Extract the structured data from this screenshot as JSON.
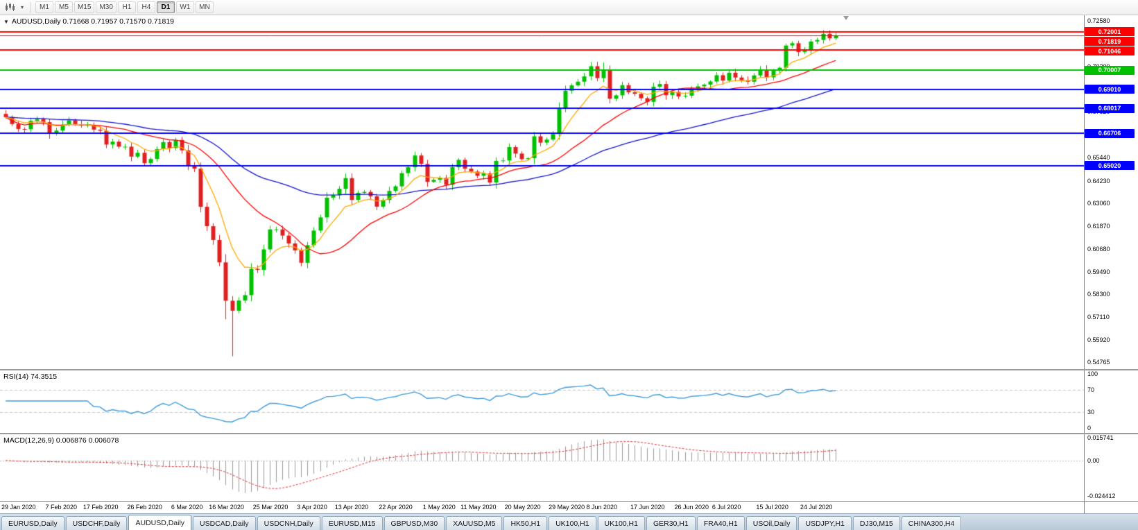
{
  "toolbar": {
    "timeframes": [
      "M1",
      "M5",
      "M15",
      "M30",
      "H1",
      "H4",
      "D1",
      "W1",
      "MN"
    ],
    "active_timeframe": "D1"
  },
  "bottom_tabs": {
    "items": [
      "EURUSD,Daily",
      "USDCHF,Daily",
      "AUDUSD,Daily",
      "USDCAD,Daily",
      "USDCNH,Daily",
      "EURUSD,M15",
      "GBPUSD,M30",
      "XAUUSD,M5",
      "HK50,H1",
      "UK100,H1",
      "UK100,H1",
      "GER30,H1",
      "FRA40,H1",
      "USOil,Daily",
      "USDJPY,H1",
      "DJ30,M15",
      "CHINA300,H4"
    ],
    "active_index": 2
  },
  "chart_data": {
    "type": "candlestick",
    "symbol": "AUDUSD",
    "timeframe": "Daily",
    "labels": {
      "collapse_arrow": "▼",
      "ohlc_header": "AUDUSD,Daily  0.71668 0.71957 0.71570 0.71819",
      "rsi": "RSI(14) 74.3515",
      "macd": "MACD(12,26,9) 0.006876 0.006078"
    },
    "price_axis": {
      "min": 0.54765,
      "max": 0.7258,
      "ticks": [
        0.7258,
        0.7139,
        0.702,
        0.6901,
        0.6782,
        0.6663,
        0.6544,
        0.6423,
        0.6306,
        0.6187,
        0.6068,
        0.5949,
        0.583,
        0.5711,
        0.5592,
        0.54765
      ]
    },
    "hlines": [
      {
        "price": 0.72001,
        "label": "0.72001",
        "color": "#ff0000"
      },
      {
        "price": 0.71046,
        "label": "0.71046",
        "color": "#ff0000"
      },
      {
        "price": 0.70007,
        "label": "0.70007",
        "color": "#00c000"
      },
      {
        "price": 0.6901,
        "label": "0.69010",
        "color": "#0000ff"
      },
      {
        "price": 0.68017,
        "label": "0.68017",
        "color": "#0000ff"
      },
      {
        "price": 0.66706,
        "label": "0.66706",
        "color": "#0000ff"
      },
      {
        "price": 0.6502,
        "label": "0.65020",
        "color": "#0000ff"
      }
    ],
    "current_price": {
      "value": 0.71819,
      "label": "0.71819",
      "color": "#ff0000"
    },
    "candles": {
      "first_open": 0.6772,
      "up_color": "#00c000",
      "down_color": "#e02020",
      "closes": [
        0.6755,
        0.6719,
        0.6693,
        0.6692,
        0.6736,
        0.6745,
        0.6729,
        0.6668,
        0.6685,
        0.6715,
        0.6738,
        0.6717,
        0.6712,
        0.6714,
        0.669,
        0.6684,
        0.6612,
        0.6627,
        0.6601,
        0.6601,
        0.6549,
        0.6569,
        0.6515,
        0.6537,
        0.6588,
        0.6625,
        0.6594,
        0.6636,
        0.6582,
        0.6504,
        0.6486,
        0.6287,
        0.6186,
        0.6114,
        0.5997,
        0.5797,
        0.5745,
        0.5798,
        0.5826,
        0.5963,
        0.5958,
        0.6065,
        0.6169,
        0.6169,
        0.6137,
        0.6096,
        0.606,
        0.5995,
        0.6087,
        0.6163,
        0.6232,
        0.6335,
        0.6348,
        0.6381,
        0.6437,
        0.6323,
        0.636,
        0.6365,
        0.6342,
        0.6288,
        0.6323,
        0.637,
        0.6394,
        0.6463,
        0.6494,
        0.6555,
        0.6511,
        0.6417,
        0.6428,
        0.6438,
        0.6402,
        0.6494,
        0.6532,
        0.6486,
        0.6471,
        0.6449,
        0.6461,
        0.6414,
        0.6527,
        0.6529,
        0.6599,
        0.6565,
        0.6536,
        0.6541,
        0.6655,
        0.6622,
        0.6638,
        0.6667,
        0.6799,
        0.6893,
        0.6921,
        0.694,
        0.6968,
        0.7021,
        0.6959,
        0.7,
        0.6851,
        0.6869,
        0.6922,
        0.6885,
        0.6877,
        0.6854,
        0.6835,
        0.6914,
        0.6928,
        0.687,
        0.6887,
        0.6863,
        0.6867,
        0.6905,
        0.6916,
        0.6925,
        0.6941,
        0.6974,
        0.6946,
        0.6987,
        0.6962,
        0.6948,
        0.694,
        0.6973,
        0.7003,
        0.6963,
        0.6997,
        0.7013,
        0.7129,
        0.7141,
        0.7095,
        0.7102,
        0.715,
        0.7158,
        0.719,
        0.71668,
        0.71819
      ],
      "high_overrides": {
        "95": 0.7041,
        "124": 0.7138,
        "132": 0.71957
      },
      "low_overrides": {
        "35": 0.57,
        "36": 0.5507,
        "132": 0.7157
      }
    },
    "moving_averages": [
      {
        "method": "ema",
        "period": 55,
        "color": "#1414cc"
      },
      {
        "method": "sma",
        "period": 20,
        "color": "#ff0000"
      },
      {
        "method": "ema",
        "period": 8,
        "color": "#ffaa00"
      }
    ],
    "x_ticks": [
      {
        "label": "29 Jan 2020",
        "index": 0
      },
      {
        "label": "7 Feb 2020",
        "index": 7
      },
      {
        "label": "17 Feb 2020",
        "index": 13
      },
      {
        "label": "26 Feb 2020",
        "index": 20
      },
      {
        "label": "6 Mar 2020",
        "index": 27
      },
      {
        "label": "16 Mar 2020",
        "index": 33
      },
      {
        "label": "25 Mar 2020",
        "index": 40
      },
      {
        "label": "3 Apr 2020",
        "index": 47
      },
      {
        "label": "13 Apr 2020",
        "index": 53
      },
      {
        "label": "22 Apr 2020",
        "index": 60
      },
      {
        "label": "1 May 2020",
        "index": 67
      },
      {
        "label": "11 May 2020",
        "index": 73
      },
      {
        "label": "20 May 2020",
        "index": 80
      },
      {
        "label": "29 May 2020",
        "index": 87
      },
      {
        "label": "8 Jun 2020",
        "index": 93
      },
      {
        "label": "17 Jun 2020",
        "index": 100
      },
      {
        "label": "26 Jun 2020",
        "index": 107
      },
      {
        "label": "6 Jul 2020",
        "index": 113
      },
      {
        "label": "15 Jul 2020",
        "index": 120
      },
      {
        "label": "24 Jul 2020",
        "index": 127
      }
    ],
    "rsi": {
      "period": 14,
      "color": "#3e9bd8",
      "levels": [
        70,
        30
      ],
      "ticks": [
        100,
        70,
        30,
        0
      ],
      "min": 0,
      "max": 100
    },
    "macd": {
      "fast": 12,
      "slow": 26,
      "signal": 9,
      "bar_color": "#9a9a9a",
      "signal_color": "#e03030",
      "min": -0.024412,
      "max": 0.015741,
      "ticks": [
        "0.015741",
        "0.00",
        "-0.024412"
      ]
    }
  }
}
